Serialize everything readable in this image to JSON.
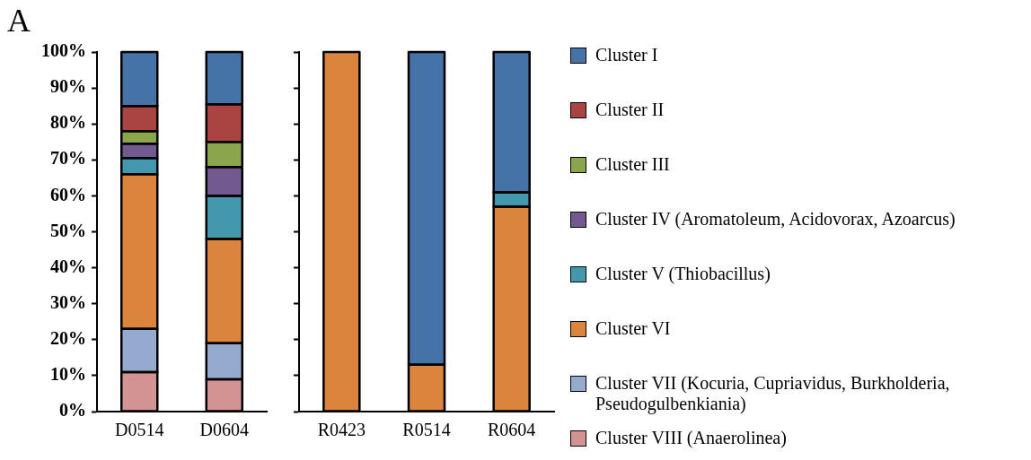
{
  "chart_data": [
    {
      "type": "bar",
      "title": "A",
      "stacked": true,
      "categories": [
        "D0514",
        "D0604"
      ],
      "ylim": [
        0,
        100
      ],
      "yticks": [
        {
          "value": 0,
          "label": "0%"
        },
        {
          "value": 10,
          "label": "10%"
        },
        {
          "value": 20,
          "label": "20%"
        },
        {
          "value": 30,
          "label": "30%"
        },
        {
          "value": 40,
          "label": "40%"
        },
        {
          "value": 50,
          "label": "50%"
        },
        {
          "value": 60,
          "label": "60%"
        },
        {
          "value": 70,
          "label": "70%"
        },
        {
          "value": 80,
          "label": "80%"
        },
        {
          "value": 90,
          "label": "90%"
        },
        {
          "value": 100,
          "label": "100%"
        }
      ],
      "grid": false,
      "legend": false,
      "series": [
        {
          "color": "#d39393",
          "values": [
            11,
            9
          ]
        },
        {
          "color": "#96aad0",
          "values": [
            12,
            10
          ]
        },
        {
          "color": "#db843d",
          "values": [
            43,
            29
          ]
        },
        {
          "color": "#4398ae",
          "values": [
            4.5,
            12
          ]
        },
        {
          "color": "#72598f",
          "values": [
            4,
            8
          ]
        },
        {
          "color": "#8ba54d",
          "values": [
            3.5,
            7
          ]
        },
        {
          "color": "#a94442",
          "values": [
            7,
            10.5
          ]
        },
        {
          "color": "#4572a7",
          "values": [
            15,
            14.5
          ]
        }
      ]
    },
    {
      "type": "bar",
      "stacked": true,
      "categories": [
        "R0423",
        "R0514",
        "R0604"
      ],
      "ylim": [
        0,
        100
      ],
      "yticks": [
        0,
        10,
        20,
        30,
        40,
        50,
        60,
        70,
        80,
        90,
        100
      ],
      "tick_labels": "x",
      "grid": false,
      "legend": "right",
      "series": [
        {
          "name": "Cluster VIII (Anaerolinea)",
          "color": "#d39393",
          "values": [
            0,
            0,
            0
          ]
        },
        {
          "name": "Cluster VII (Kocuria, Cupriavidus, Burkholderia, Pseudogulbenkiania)",
          "color": "#96aad0",
          "values": [
            0,
            0,
            0
          ]
        },
        {
          "name": "Cluster VI",
          "color": "#db843d",
          "values": [
            100,
            13,
            57
          ]
        },
        {
          "name": "Cluster V (Thiobacillus)",
          "color": "#4398ae",
          "values": [
            0,
            0,
            4
          ]
        },
        {
          "name": "Cluster IV (Aromatoleum, Acidovorax, Azoarcus)",
          "color": "#72598f",
          "values": [
            0,
            0,
            0
          ]
        },
        {
          "name": "Cluster III",
          "color": "#8ba54d",
          "values": [
            0,
            0,
            0
          ]
        },
        {
          "name": "Cluster II",
          "color": "#a94442",
          "values": [
            0,
            0,
            0
          ]
        },
        {
          "name": "Cluster I",
          "color": "#4572a7",
          "values": [
            0,
            87,
            39
          ]
        }
      ]
    }
  ]
}
